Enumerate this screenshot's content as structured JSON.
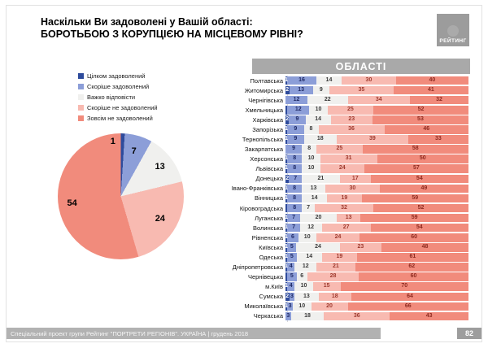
{
  "page": {
    "title_line1": "Наскільки Ви задоволені у Вашій області:",
    "title_line2": "БОРОТЬБОЮ З КОРУПЦІЄЮ НА МІСЦЕВОМУ РІВНІ?",
    "logo_text": "РЕЙТИНГ",
    "regions_header": "ОБЛАСТІ",
    "footer_text": "Спеціальний проект групи Рейтинг \"ПОРТРЕТИ РЕГІОНІВ\". УКРАЇНА | грудень 2018",
    "page_number": "82"
  },
  "colors": {
    "segments": [
      "#2e4b9c",
      "#8c9ed8",
      "#f0f0ee",
      "#f8bab1",
      "#f18b7c"
    ],
    "segment_labels": [
      "#ffffff",
      "#1f2a66",
      "#3a3a3a",
      "#9e3a2e",
      "#8e2b20"
    ],
    "header_gray": "#a9a9a9",
    "footer_gray": "#b2b2b2",
    "logo_gray": "#9c9c9c"
  },
  "chart_data": [
    {
      "type": "pie",
      "title": "Наскільки Ви задоволені у Вашій області: БОРОТЬБОЮ З КОРУПЦІЄЮ НА МІСЦЕВОМУ РІВНІ?",
      "labels": [
        "Цілком задоволений",
        "Скоріше задоволений",
        "Важко відповісти",
        "Скоріше не задоволений",
        "Зовсім не задоволений"
      ],
      "values": [
        1,
        7,
        13,
        24,
        54
      ],
      "legend_position": "top-left",
      "start_angle": "12-oclock-clockwise"
    },
    {
      "type": "bar",
      "subtype": "horizontal-stacked-100",
      "title": "ОБЛАСТІ",
      "series_names": [
        "Цілком задоволений",
        "Скоріше задоволений",
        "Важко відповісти",
        "Скоріше не задоволений",
        "Зовсім не задоволений"
      ],
      "xlim": [
        0,
        100
      ],
      "rows": [
        {
          "name": "Полтавська",
          "values": [
            1,
            16,
            14,
            30,
            40
          ],
          "labels": [
            "1",
            "16",
            "14",
            "30",
            "40"
          ]
        },
        {
          "name": "Житомирська",
          "values": [
            2,
            13,
            9,
            35,
            41
          ],
          "labels": [
            "2",
            "13",
            "9",
            "35",
            "41"
          ]
        },
        {
          "name": "Чернігівська",
          "values": [
            0,
            12,
            22,
            34,
            32
          ],
          "labels": [
            "",
            "12",
            "22",
            "34",
            "32"
          ]
        },
        {
          "name": "Хмельницька",
          "values": [
            1,
            12,
            10,
            25,
            52
          ],
          "labels": [
            "",
            "12",
            "10",
            "25",
            "52"
          ]
        },
        {
          "name": "Харківська",
          "values": [
            2,
            9,
            14,
            23,
            53
          ],
          "labels": [
            "2",
            "9",
            "14",
            "23",
            "53"
          ]
        },
        {
          "name": "Запорізька",
          "values": [
            1,
            9,
            8,
            36,
            46
          ],
          "labels": [
            "1",
            "9",
            "8",
            "36",
            "46"
          ]
        },
        {
          "name": "Тернопільська",
          "values": [
            1,
            9,
            18,
            39,
            33
          ],
          "labels": [
            "1",
            "9",
            "18",
            "39",
            "33"
          ]
        },
        {
          "name": "Закарпатська",
          "values": [
            0,
            9,
            8,
            25,
            58
          ],
          "labels": [
            "",
            "9",
            "8",
            "25",
            "58"
          ]
        },
        {
          "name": "Херсонська",
          "values": [
            1,
            8,
            10,
            31,
            50
          ],
          "labels": [
            "1",
            "8",
            "10",
            "31",
            "50"
          ]
        },
        {
          "name": "Львівська",
          "values": [
            1,
            8,
            10,
            24,
            57
          ],
          "labels": [
            "1",
            "8",
            "10",
            "24",
            "57"
          ]
        },
        {
          "name": "Донецька",
          "values": [
            2,
            7,
            21,
            17,
            54
          ],
          "labels": [
            "2",
            "7",
            "21",
            "17",
            "54"
          ]
        },
        {
          "name": "Івано-Франківська",
          "values": [
            1,
            8,
            13,
            30,
            49
          ],
          "labels": [
            "1",
            "8",
            "13",
            "30",
            "49"
          ]
        },
        {
          "name": "Вінницька",
          "values": [
            1,
            8,
            14,
            19,
            59
          ],
          "labels": [
            "1",
            "8",
            "14",
            "19",
            "59"
          ]
        },
        {
          "name": "Кіровоградська",
          "values": [
            1,
            8,
            7,
            32,
            52
          ],
          "labels": [
            "",
            "8",
            "7",
            "32",
            "52"
          ]
        },
        {
          "name": "Луганська",
          "values": [
            1,
            7,
            20,
            13,
            59
          ],
          "labels": [
            "1",
            "7",
            "20",
            "13",
            "59"
          ]
        },
        {
          "name": "Волинська",
          "values": [
            1,
            7,
            12,
            27,
            54
          ],
          "labels": [
            "1",
            "7",
            "12",
            "27",
            "54"
          ]
        },
        {
          "name": "Рівненська",
          "values": [
            1,
            6,
            10,
            24,
            60
          ],
          "labels": [
            "1",
            "6",
            "10",
            "24",
            "60"
          ]
        },
        {
          "name": "Київська",
          "values": [
            1,
            5,
            24,
            23,
            48
          ],
          "labels": [
            "1",
            "5",
            "24",
            "23",
            "48"
          ]
        },
        {
          "name": "Одеська",
          "values": [
            1,
            5,
            14,
            19,
            61
          ],
          "labels": [
            "1",
            "5",
            "14",
            "19",
            "61"
          ]
        },
        {
          "name": "Дніпропетровська",
          "values": [
            1,
            4,
            12,
            21,
            62
          ],
          "labels": [
            "1",
            "4",
            "12",
            "21",
            "62"
          ]
        },
        {
          "name": "Чернівецька",
          "values": [
            1,
            5,
            6,
            28,
            60
          ],
          "labels": [
            "",
            "5",
            "6",
            "28",
            "60"
          ]
        },
        {
          "name": "м.Київ",
          "values": [
            1,
            4,
            10,
            15,
            70
          ],
          "labels": [
            "1",
            "4",
            "10",
            "15",
            "70"
          ]
        },
        {
          "name": "Сумська",
          "values": [
            2,
            3,
            13,
            18,
            64
          ],
          "labels": [
            "2",
            "3",
            "13",
            "18",
            "64"
          ]
        },
        {
          "name": "Миколаївська",
          "values": [
            1,
            3,
            10,
            20,
            66
          ],
          "labels": [
            "1",
            "3",
            "10",
            "20",
            "66"
          ]
        },
        {
          "name": "Черкаська",
          "values": [
            0,
            3,
            18,
            36,
            43
          ],
          "labels": [
            "",
            "3",
            "18",
            "36",
            "43"
          ]
        }
      ]
    }
  ]
}
